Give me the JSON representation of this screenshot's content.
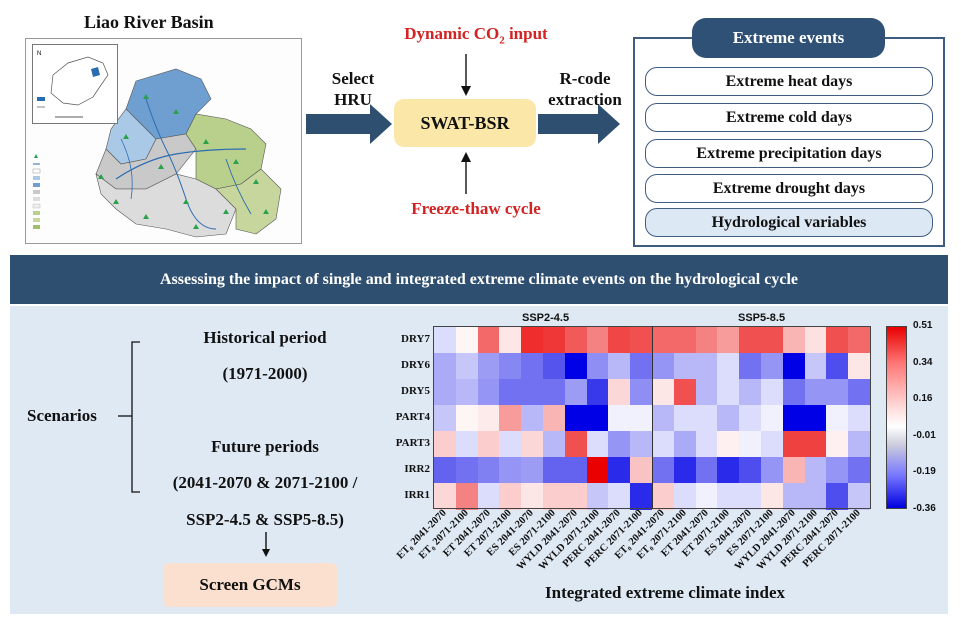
{
  "map": {
    "title": "Liao River Basin",
    "legend": [
      "Weather station",
      "River",
      "URB",
      "Wetlands",
      "IRR3",
      "IRR2",
      "PART3",
      "PART4",
      "DRY5",
      "DRY6",
      "DRY7"
    ],
    "inset_legend": [
      "Liao River Basin",
      "Boundary"
    ]
  },
  "flow": {
    "select_label_1": "Select",
    "select_label_2": "HRU",
    "model": "SWAT-BSR",
    "co2_prefix": "Dynamic CO",
    "co2_sub": "2",
    "co2_suffix": " input",
    "freeze_thaw": "Freeze-thaw cycle",
    "rcode_label_1": "R-code",
    "rcode_label_2": "extraction"
  },
  "events": {
    "header": "Extreme events",
    "items": [
      "Extreme heat days",
      "Extreme cold days",
      "Extreme precipitation days",
      "Extreme drought days",
      "Hydrological variables"
    ]
  },
  "banner": "Assessing the impact of single and integrated extreme climate events on the hydrological cycle",
  "scenarios": {
    "label": "Scenarios",
    "historical_title": "Historical period",
    "historical_range": "(1971-2000)",
    "future_title": "Future periods",
    "future_line1": "(2041-2070 & 2071-2100 /",
    "future_line2": "SSP2-4.5 & SSP5-8.5)",
    "gcm_button": "Screen GCMs"
  },
  "colors": {
    "banner": "#2e4f70",
    "model_box": "#fbe8a8",
    "highlight_red": "#d42121",
    "gcm_box": "#fbe0d0",
    "panel_bg": "#dfe9f4"
  },
  "chart_data": {
    "type": "heatmap",
    "panels": [
      "SSP2-4.5",
      "SSP5-8.5"
    ],
    "rows": [
      "DRY7",
      "DRY6",
      "DRY5",
      "PART4",
      "PART3",
      "IRR2",
      "IRR1"
    ],
    "columns": [
      "ET₀ 2041-2070",
      "ET₀ 2071-2100",
      "ET 2041-2070",
      "ET 2071-2100",
      "ES 2041-2070",
      "ES 2071-2100",
      "WYLD 2041-2070",
      "WYLD 2071-2100",
      "PERC 2041-2070",
      "PERC 2071-2100"
    ],
    "xlabel": "Integrated extreme climate index",
    "colorbar_ticks": [
      "0.51",
      "0.34",
      "0.16",
      "-0.01",
      "-0.19",
      "-0.36"
    ],
    "colorbar_range": [
      -0.36,
      0.51
    ],
    "values": {
      "SSP2-4.5": [
        [
          -0.05,
          0.02,
          0.3,
          0.05,
          0.42,
          0.4,
          0.33,
          0.25,
          0.37,
          0.35
        ],
        [
          -0.12,
          -0.08,
          -0.14,
          -0.17,
          -0.2,
          -0.24,
          -0.36,
          -0.16,
          -0.1,
          -0.2
        ],
        [
          -0.12,
          -0.1,
          -0.15,
          -0.2,
          -0.2,
          -0.2,
          -0.14,
          -0.28,
          0.08,
          -0.16
        ],
        [
          -0.08,
          0.02,
          0.04,
          0.2,
          -0.1,
          0.15,
          -0.36,
          -0.36,
          -0.02,
          -0.02
        ],
        [
          0.1,
          -0.05,
          0.1,
          -0.05,
          0.08,
          -0.1,
          0.35,
          -0.05,
          -0.15,
          -0.1
        ],
        [
          -0.22,
          -0.2,
          -0.18,
          -0.15,
          -0.14,
          -0.22,
          -0.22,
          0.51,
          -0.3,
          0.12
        ],
        [
          0.08,
          0.25,
          -0.05,
          0.1,
          0.05,
          0.1,
          0.1,
          -0.08,
          -0.05,
          -0.3
        ]
      ],
      "SSP5-8.5": [
        [
          0.3,
          0.3,
          0.25,
          0.2,
          0.35,
          0.35,
          0.15,
          0.06,
          0.35,
          0.3
        ],
        [
          -0.15,
          -0.1,
          -0.1,
          -0.05,
          -0.2,
          -0.15,
          -0.36,
          -0.08,
          -0.25,
          0.05
        ],
        [
          0.05,
          0.35,
          -0.1,
          -0.05,
          -0.1,
          -0.05,
          -0.2,
          -0.15,
          -0.15,
          -0.2
        ],
        [
          -0.1,
          -0.05,
          -0.05,
          -0.1,
          -0.05,
          -0.02,
          -0.36,
          -0.36,
          -0.02,
          -0.05
        ],
        [
          -0.05,
          -0.12,
          -0.05,
          0.03,
          -0.02,
          -0.05,
          0.38,
          0.38,
          0.03,
          -0.1
        ],
        [
          -0.2,
          -0.3,
          -0.2,
          -0.3,
          -0.25,
          -0.15,
          0.15,
          -0.1,
          -0.15,
          -0.2
        ],
        [
          0.1,
          -0.05,
          -0.02,
          -0.05,
          -0.05,
          0.05,
          -0.1,
          -0.1,
          -0.25,
          -0.08
        ]
      ]
    }
  }
}
